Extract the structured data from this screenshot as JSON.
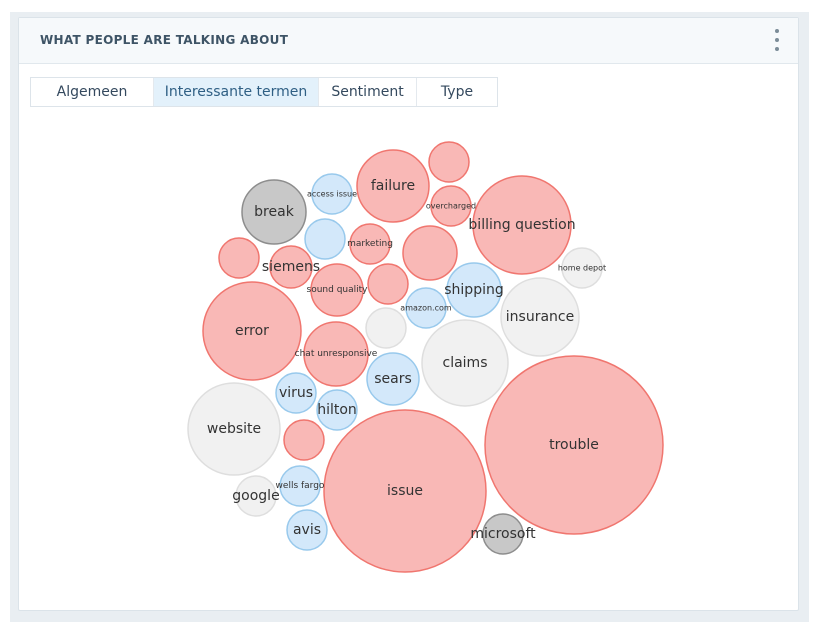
{
  "widget": {
    "title": "WHAT PEOPLE ARE TALKING ABOUT",
    "menu_icon": "more-vertical-icon"
  },
  "tabs": [
    {
      "label": "Algemeen",
      "active": false
    },
    {
      "label": "Interessante termen",
      "active": true
    },
    {
      "label": "Sentiment",
      "active": false
    },
    {
      "label": "Type",
      "active": false
    }
  ],
  "colors": {
    "negative_fill": "#f9b8b6",
    "negative_stroke": "#f0766f",
    "mention_fill": "#d3e8fa",
    "mention_stroke": "#98c9ec",
    "neutral_fill": "#f1f1f1",
    "neutral_stroke": "#dedede",
    "dark_fill": "#c8c8c8",
    "dark_stroke": "#8d8d8d"
  },
  "chart_data": {
    "type": "bubble",
    "bubbles": [
      {
        "label": "trouble",
        "kind": "negative"
      },
      {
        "label": "issue",
        "kind": "negative"
      },
      {
        "label": "billing question",
        "kind": "negative"
      },
      {
        "label": "error",
        "kind": "negative"
      },
      {
        "label": "website",
        "kind": "neutral"
      },
      {
        "label": "insurance",
        "kind": "neutral"
      },
      {
        "label": "claims",
        "kind": "neutral"
      },
      {
        "label": "failure",
        "kind": "negative"
      },
      {
        "label": "chat unresponsive",
        "kind": "negative"
      },
      {
        "label": "break",
        "kind": "dark"
      },
      {
        "label": "shipping",
        "kind": "mention"
      },
      {
        "label": "sears",
        "kind": "mention"
      },
      {
        "label": "sound quality",
        "kind": "negative"
      },
      {
        "label": "",
        "kind": "negative"
      },
      {
        "label": "virus",
        "kind": "mention"
      },
      {
        "label": "hilton",
        "kind": "mention"
      },
      {
        "label": "microsoft",
        "kind": "dark"
      },
      {
        "label": "avis",
        "kind": "mention"
      },
      {
        "label": "wells fargo",
        "kind": "mention"
      },
      {
        "label": "google",
        "kind": "neutral"
      },
      {
        "label": "siemens",
        "kind": "negative"
      },
      {
        "label": "marketing",
        "kind": "negative"
      },
      {
        "label": "access issue",
        "kind": "mention"
      },
      {
        "label": "overcharged",
        "kind": "negative"
      },
      {
        "label": "amazon.com",
        "kind": "mention"
      },
      {
        "label": "home depot",
        "kind": "neutral"
      },
      {
        "label": "",
        "kind": "negative"
      },
      {
        "label": "",
        "kind": "negative"
      },
      {
        "label": "",
        "kind": "negative"
      },
      {
        "label": "",
        "kind": "negative"
      },
      {
        "label": "",
        "kind": "mention"
      },
      {
        "label": "",
        "kind": "neutral"
      }
    ]
  }
}
